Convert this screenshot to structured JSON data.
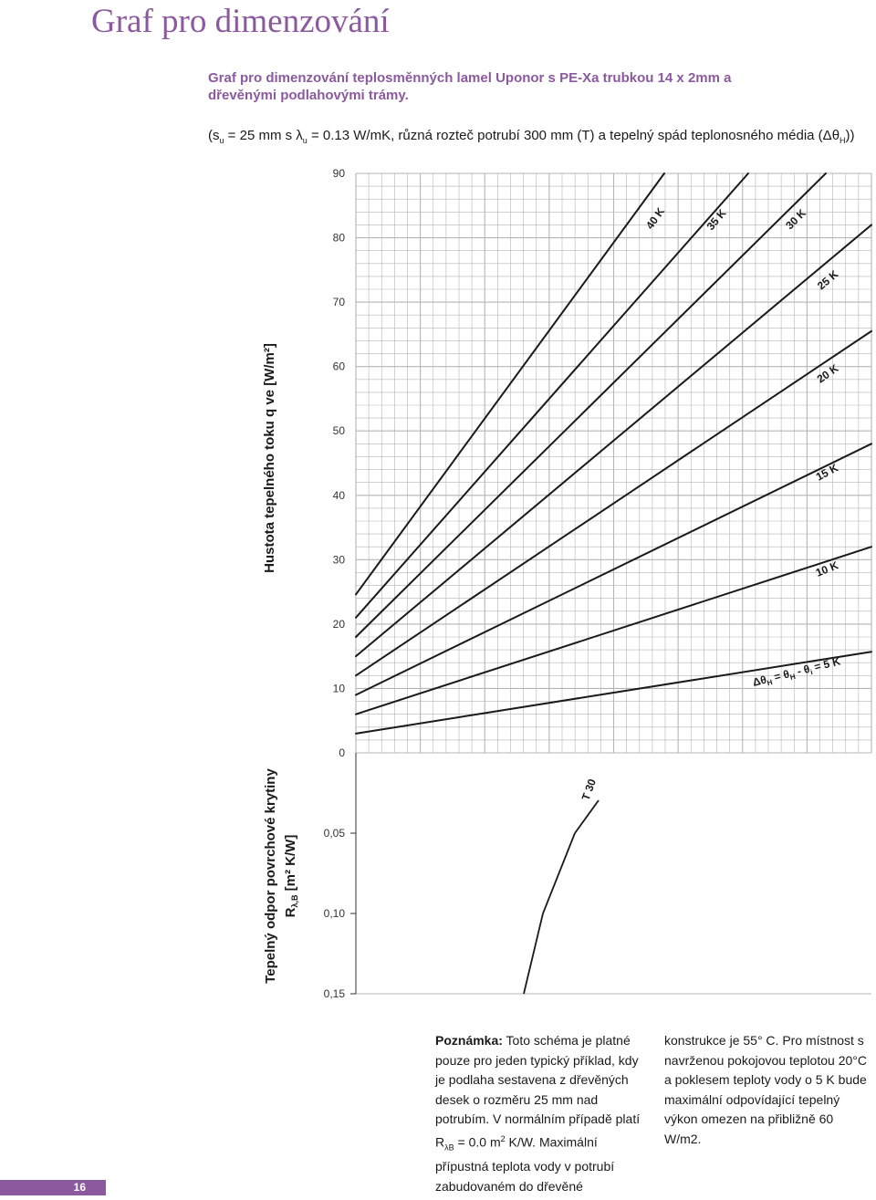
{
  "page": {
    "title": "Graf pro dimenzování",
    "subtitle": "Graf pro dimenzování teplosměnných lamel Uponor s PE-Xa trubkou 14 x 2mm a dřevěnými podlahovými trámy.",
    "params_prefix": "(s",
    "params_sub1": "u",
    "params_mid1": " = 25 mm s λ",
    "params_sub2": "u",
    "params_mid2": " = 0.13 W/mK, různá rozteč potrubí 300 mm (T) a tepelný spád teplonosného média (Δθ",
    "params_sub3": "H",
    "params_suffix": "))",
    "page_number": "16"
  },
  "notes": {
    "left_bold": "Poznámka:",
    "left_text": " Toto schéma je platné pouze pro jeden typický příklad, kdy je podlaha sestavena z dřevěných desek o rozměru 25 mm nad potrubím. V normálním případě platí R",
    "left_sub": "λB",
    "left_text2": " = 0.0 m",
    "left_sup": "2",
    "left_text3": " K/W. Maximální přípustná teplota vody v potrubí zabudovaném do dřevěné",
    "right_text": "konstrukce je 55° C. Pro místnost s navrženou pokojovou teplotou 20°C a poklesem teploty vody o 5 K bude maximální odpovídající tepelný výkon omezen na přibližně 60 W/m2."
  },
  "colors": {
    "brand": "#8b5a9e",
    "grid": "#b5b5b5",
    "line": "#1a1a1a"
  },
  "chart_data": [
    {
      "type": "line",
      "ylabel": "Hustota tepelného toku q ve [W/m²]",
      "ylim": [
        0,
        90
      ],
      "yticks": [
        "0",
        "10",
        "20",
        "30",
        "40",
        "50",
        "60",
        "70",
        "80",
        "90"
      ],
      "grid": true,
      "series": [
        {
          "name": "Δθ_H = θ_H - θ_i = 5 K",
          "start": 3.0,
          "end": 15.7
        },
        {
          "name": "10 K",
          "start": 6.0,
          "end": 32.0
        },
        {
          "name": "15 K",
          "start": 9.0,
          "end": 48.0
        },
        {
          "name": "20 K",
          "start": 12.0,
          "end": 65.5
        },
        {
          "name": "25 K",
          "start": 15.0,
          "end": 82.0
        },
        {
          "name": "30 K",
          "start": 18.0,
          "end": 89.0
        },
        {
          "name": "35 K",
          "start": 21.0,
          "end": 90.0
        },
        {
          "name": "40 K",
          "start": 24.6,
          "end": 90.0
        }
      ],
      "line_labels": [
        "Δθ",
        "H",
        " = θ",
        "H",
        " - θ",
        "i",
        " = 5 K",
        "10 K",
        "15 K",
        "20 K",
        "25 K",
        "30 K",
        "35 K",
        "40 K"
      ]
    },
    {
      "type": "line",
      "ylabel_line1": "Tepelný odpor povrchové krytiny",
      "ylabel_line2_main": "R",
      "ylabel_line2_sub": "λ,B",
      "ylabel_line2_rest": " [m² K/W]",
      "ylim": [
        0,
        0.15
      ],
      "yticks": [
        "0,05",
        "0,10",
        "0,15"
      ],
      "grid": false,
      "series": [
        {
          "name": "T 30",
          "points": [
            [
              0.05,
              0.0
            ],
            [
              0.1,
              0.05
            ],
            [
              0.15,
              0.1
            ]
          ]
        }
      ],
      "line_label": "T 30"
    }
  ]
}
